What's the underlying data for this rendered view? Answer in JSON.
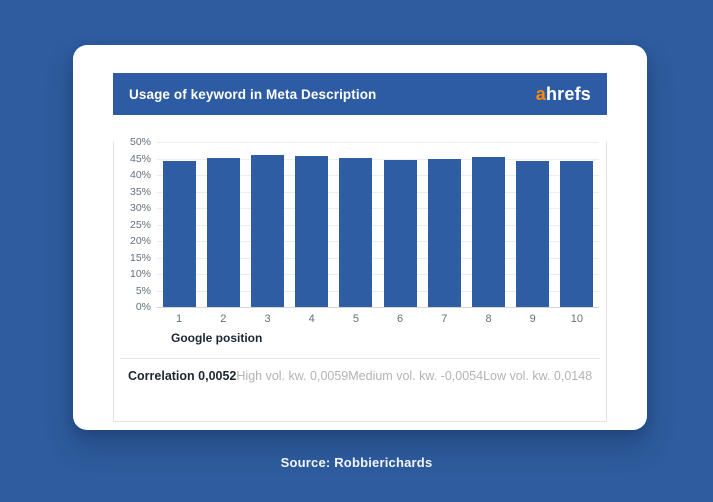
{
  "header": {
    "title": "Usage of keyword in Meta Description",
    "logo_prefix": "a",
    "logo_rest": "hrefs"
  },
  "chart_data": {
    "type": "bar",
    "title": "Usage of keyword in Meta Description",
    "categories": [
      "1",
      "2",
      "3",
      "4",
      "5",
      "6",
      "7",
      "8",
      "9",
      "10"
    ],
    "values": [
      44.3,
      45.2,
      46.1,
      45.8,
      45.2,
      44.6,
      44.8,
      45.5,
      44.1,
      44.3
    ],
    "xlabel": "Google position",
    "ylabel": "",
    "ylim": [
      0,
      50
    ],
    "ytick_step": 5,
    "yticks": [
      "0%",
      "5%",
      "10%",
      "15%",
      "20%",
      "25%",
      "30%",
      "35%",
      "40%",
      "45%",
      "50%"
    ],
    "grid": true,
    "legend": "none",
    "bar_color": "#2e5da4"
  },
  "footer": {
    "correlation_label": "Correlation 0,0052",
    "segments": [
      "High vol. kw. 0,0059",
      "Medium vol. kw. -0,0054",
      "Low vol. kw. 0,0148"
    ]
  },
  "source": "Source: Robbierichards",
  "colors": {
    "background": "#2e5c9e",
    "header_bar": "#2d5ca4",
    "bar": "#2e5da4",
    "logo_accent": "#ff8800"
  }
}
